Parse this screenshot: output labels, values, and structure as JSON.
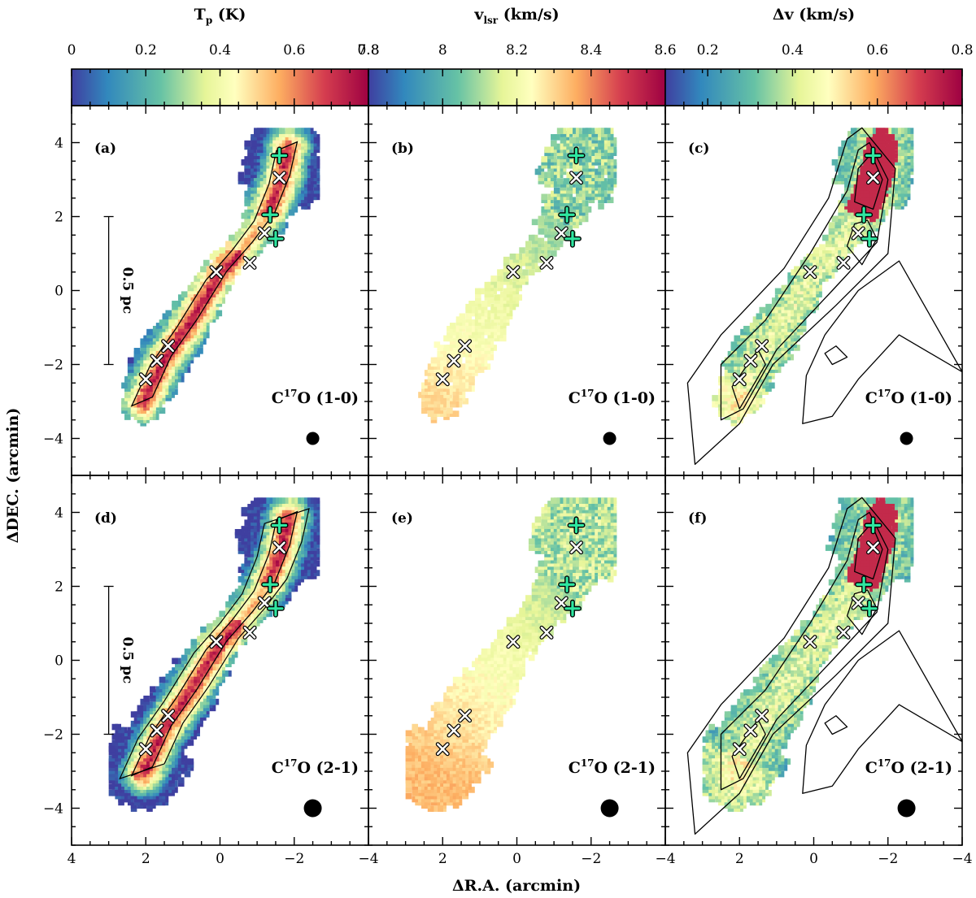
{
  "chart_data": {
    "type": "heatmap",
    "colorbars": [
      {
        "id": "cb-tp",
        "title": "T",
        "title_sub": "p",
        "title_unit": " (K)",
        "ticks": [
          "0",
          "0.2",
          "0.4",
          "0.6",
          "0.8"
        ],
        "range": [
          0,
          0.8
        ]
      },
      {
        "id": "cb-vlsr",
        "title": "v",
        "title_sub": "lsr",
        "title_unit": " (km/s)",
        "ticks": [
          "7.8",
          "8",
          "8.2",
          "8.4",
          "8.6"
        ],
        "range": [
          7.8,
          8.6
        ]
      },
      {
        "id": "cb-dv",
        "title": "Δv",
        "title_sub": "",
        "title_unit": " (km/s)",
        "ticks": [
          "0.2",
          "0.4",
          "0.6",
          "0.8"
        ],
        "range": [
          0.1,
          0.8
        ]
      }
    ],
    "xlabel": "ΔR.A. (arcmin)",
    "ylabel": "ΔDEC. (arcmin)",
    "xlim": [
      4,
      -4
    ],
    "ylim": [
      -5,
      5
    ],
    "x_ticks": [
      "4",
      "2",
      "0",
      "−2",
      "−4"
    ],
    "y_ticks": [
      "−4",
      "−2",
      "0",
      "2",
      "4"
    ],
    "panels": [
      {
        "id": "a",
        "label": "(a)",
        "line": "C",
        "line_sup": "17",
        "line_rest": "O (1-0)",
        "quantity": "Tp",
        "scalebar": "0.5 pc"
      },
      {
        "id": "b",
        "label": "(b)",
        "line": "C",
        "line_sup": "17",
        "line_rest": "O (1-0)",
        "quantity": "vlsr"
      },
      {
        "id": "c",
        "label": "(c)",
        "line": "C",
        "line_sup": "17",
        "line_rest": "O (1-0)",
        "quantity": "dv"
      },
      {
        "id": "d",
        "label": "(d)",
        "line": "C",
        "line_sup": "17",
        "line_rest": "O (2-1)",
        "quantity": "Tp",
        "scalebar": "0.5 pc"
      },
      {
        "id": "e",
        "label": "(e)",
        "line": "C",
        "line_sup": "17",
        "line_rest": "O (2-1)",
        "quantity": "vlsr"
      },
      {
        "id": "f",
        "label": "(f)",
        "line": "C",
        "line_sup": "17",
        "line_rest": "O (2-1)",
        "quantity": "dv"
      }
    ],
    "cross_markers": [
      {
        "x": 2.0,
        "y": -2.4
      },
      {
        "x": 1.7,
        "y": -1.9
      },
      {
        "x": 1.4,
        "y": -1.5
      },
      {
        "x": 0.1,
        "y": 0.5
      },
      {
        "x": -0.8,
        "y": 0.75
      },
      {
        "x": -1.2,
        "y": 1.55
      },
      {
        "x": -1.6,
        "y": 3.05
      }
    ],
    "plus_markers": [
      {
        "x": -1.6,
        "y": 3.65
      },
      {
        "x": -1.35,
        "y": 2.05
      },
      {
        "x": -1.5,
        "y": 1.4
      }
    ],
    "scalebar_y_range": [
      -2,
      2
    ],
    "scalebar_x": 3.0,
    "beam": {
      "x": -2.5,
      "y": -4.0
    }
  }
}
